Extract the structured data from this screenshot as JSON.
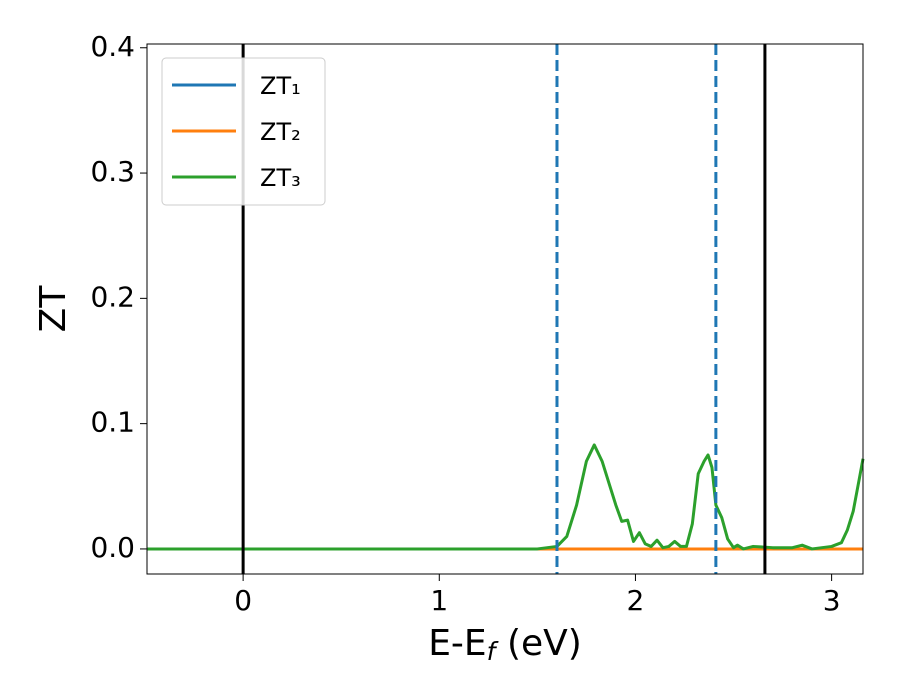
{
  "chart_data": {
    "type": "line",
    "xlabel": {
      "main": "E-E",
      "sub": "f",
      "unit": "(eV)"
    },
    "ylabel": "ZT",
    "xlim": [
      -0.49,
      3.16
    ],
    "ylim": [
      -0.02,
      0.403
    ],
    "xticks": [
      0,
      1,
      2,
      3
    ],
    "yticks": [
      {
        "value": 0,
        "label": "0.0"
      },
      0.1,
      0.2,
      0.3,
      0.4
    ],
    "legend": "upper left",
    "series": [
      {
        "name": "ZT₁",
        "color": "#1f77b4",
        "x": [
          -0.49,
          3.16
        ],
        "values": [
          0,
          0
        ]
      },
      {
        "name": "ZT₂",
        "color": "#ff7f0e",
        "x": [
          -0.49,
          3.16
        ],
        "values": [
          0,
          0
        ]
      },
      {
        "name": "ZT₃",
        "color": "#2ca02c",
        "x": [
          -0.49,
          1.5,
          1.6,
          1.65,
          1.7,
          1.75,
          1.79,
          1.83,
          1.87,
          1.9,
          1.93,
          1.96,
          1.99,
          2.02,
          2.05,
          2.08,
          2.11,
          2.14,
          2.17,
          2.2,
          2.23,
          2.26,
          2.29,
          2.32,
          2.35,
          2.37,
          2.39,
          2.41,
          2.44,
          2.47,
          2.5,
          2.52,
          2.55,
          2.6,
          2.7,
          2.8,
          2.85,
          2.9,
          3.0,
          3.05,
          3.08,
          3.11,
          3.14,
          3.16
        ],
        "values": [
          0,
          0,
          0.002,
          0.01,
          0.035,
          0.07,
          0.083,
          0.07,
          0.05,
          0.035,
          0.022,
          0.023,
          0.006,
          0.013,
          0.004,
          0.002,
          0.007,
          0.001,
          0.002,
          0.006,
          0.002,
          0.002,
          0.02,
          0.06,
          0.07,
          0.075,
          0.065,
          0.035,
          0.025,
          0.008,
          0.001,
          0.003,
          0,
          0.002,
          0.001,
          0.001,
          0.003,
          0,
          0.002,
          0.005,
          0.015,
          0.03,
          0.055,
          0.072
        ]
      }
    ],
    "vlines": [
      {
        "x": 0,
        "color": "#000000",
        "style": "solid"
      },
      {
        "x": 2.66,
        "color": "#000000",
        "style": "solid"
      },
      {
        "x": 1.6,
        "color": "#1f77b4",
        "style": "dashed"
      },
      {
        "x": 2.41,
        "color": "#1f77b4",
        "style": "dashed"
      }
    ]
  }
}
